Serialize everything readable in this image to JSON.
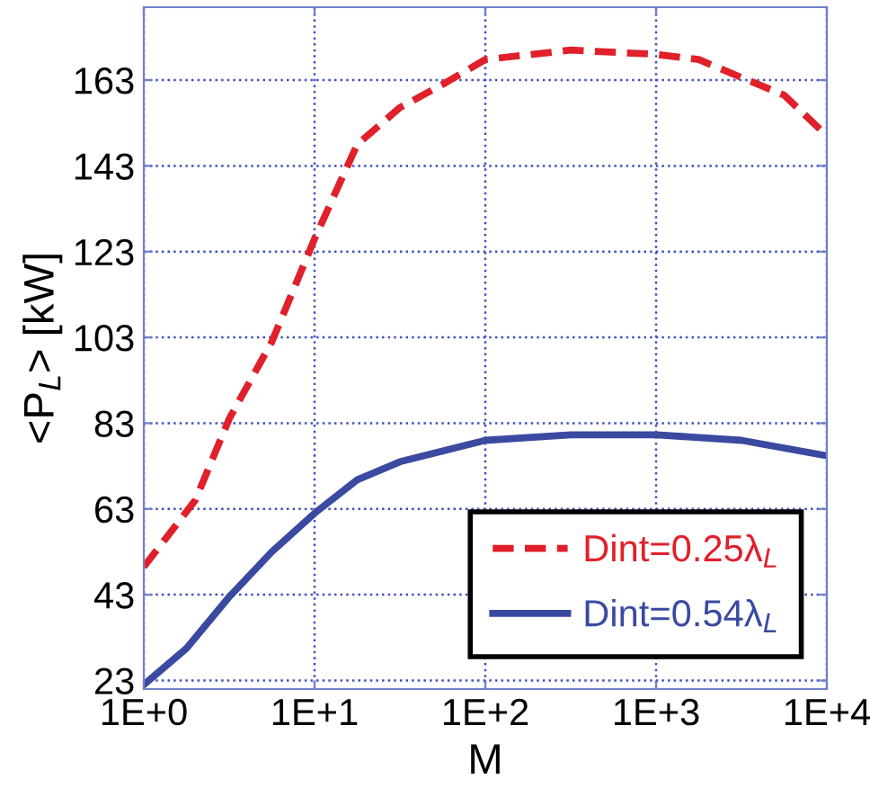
{
  "chart_data": {
    "type": "line",
    "xlabel": "M",
    "ylabel": "<P$_{L}$> [kW]",
    "log": "x",
    "xlim": [
      1,
      10000
    ],
    "xticks": [
      {
        "value": 1,
        "label": "1E+0"
      },
      {
        "value": 10,
        "label": "1E+1"
      },
      {
        "value": 100,
        "label": "1E+2"
      },
      {
        "value": 1000,
        "label": "1E+3"
      },
      {
        "value": 10000,
        "label": "1E+4"
      }
    ],
    "ylim": [
      21,
      180
    ],
    "yticks": [
      23,
      43,
      63,
      83,
      103,
      123,
      143,
      163
    ],
    "grid": true,
    "legend": "bottom right",
    "series": [
      {
        "name": "Dint=0.25λ$_{L}$",
        "color": "#e0202a",
        "line_style": "dashed",
        "x": [
          1,
          2,
          3.162,
          5.623,
          10,
          17.78,
          31.62,
          56.23,
          100,
          316.2,
          1000,
          1778,
          3162,
          5623,
          10000
        ],
        "values": [
          49.5,
          65,
          84,
          102,
          126,
          148,
          156.6,
          162,
          167.8,
          170,
          169,
          167.8,
          163.6,
          159.5,
          150
        ]
      },
      {
        "name": "Dint=0.54λ$_{L}$",
        "color": "#3a4aa0",
        "line_style": "solid",
        "x": [
          1,
          1.778,
          3.162,
          5.623,
          10,
          17.78,
          31.62,
          100,
          316.2,
          1000,
          3162,
          10000
        ],
        "values": [
          22,
          30.5,
          42.5,
          53,
          62,
          69.8,
          74,
          79,
          80.3,
          80.3,
          79,
          75.4
        ]
      }
    ]
  }
}
